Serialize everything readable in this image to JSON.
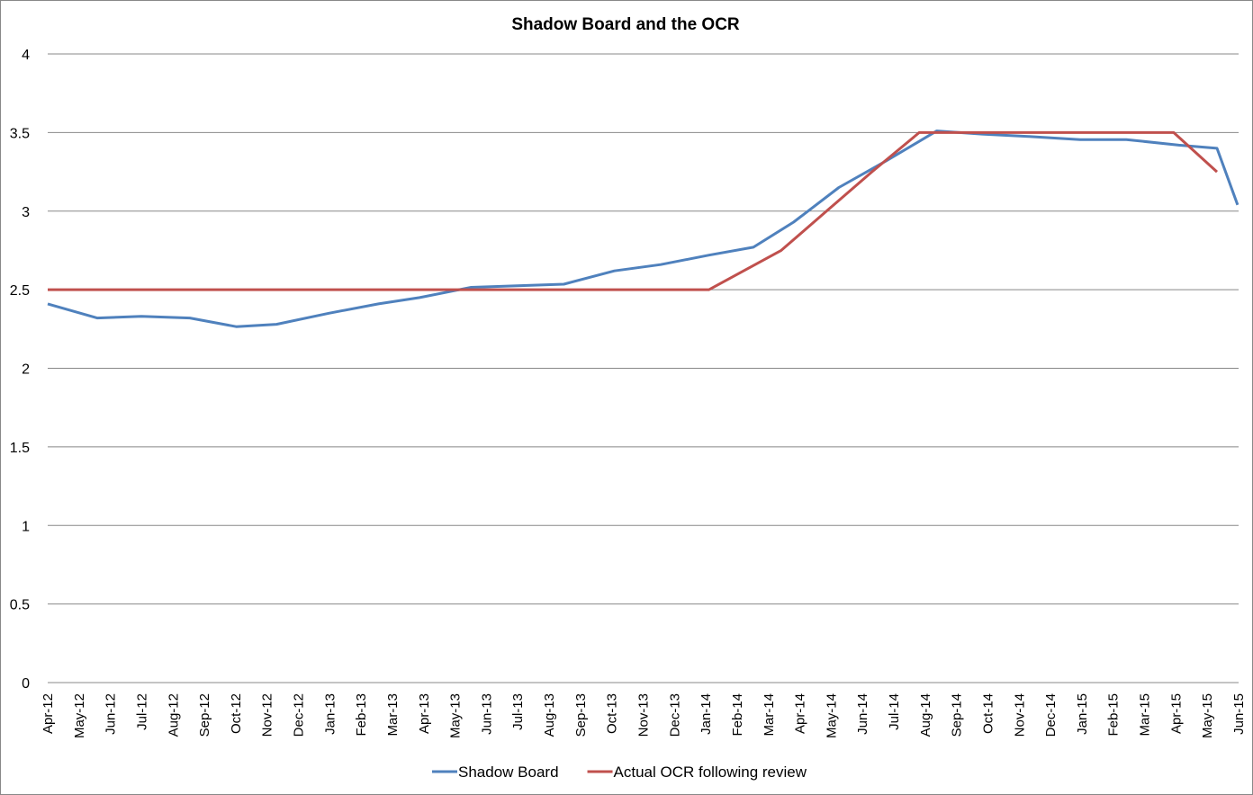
{
  "chart_data": {
    "type": "line",
    "title": "Shadow Board and the OCR",
    "xlabel": "",
    "ylabel": "",
    "ylim": [
      0,
      4
    ],
    "yticks": [
      "0",
      "0.5",
      "1",
      "1.5",
      "2",
      "2.5",
      "3",
      "3.5",
      "4"
    ],
    "xticks": [
      "Apr-12",
      "May-12",
      "Jun-12",
      "Jul-12",
      "Aug-12",
      "Sep-12",
      "Oct-12",
      "Nov-12",
      "Dec-12",
      "Jan-13",
      "Feb-13",
      "Mar-13",
      "Apr-13",
      "May-13",
      "Jun-13",
      "Jul-13",
      "Aug-13",
      "Sep-13",
      "Oct-13",
      "Nov-13",
      "Dec-13",
      "Jan-14",
      "Feb-14",
      "Mar-14",
      "Apr-14",
      "May-14",
      "Jun-14",
      "Jul-14",
      "Aug-14",
      "Sep-14",
      "Oct-14",
      "Nov-14",
      "Dec-14",
      "Jan-15",
      "Feb-15",
      "Mar-15",
      "Apr-15",
      "May-15",
      "Jun-15"
    ],
    "xlim": [
      "2012-04-01",
      "2015-06-01"
    ],
    "grid": true,
    "legend_position": "bottom",
    "series": [
      {
        "name": "Shadow Board",
        "color": "#4F81BD",
        "points": [
          [
            "2012-04-01",
            2.41
          ],
          [
            "2012-05-19",
            2.32
          ],
          [
            "2012-07-01",
            2.33
          ],
          [
            "2012-08-17",
            2.32
          ],
          [
            "2012-10-01",
            2.265
          ],
          [
            "2012-11-09",
            2.28
          ],
          [
            "2012-12-30",
            2.35
          ],
          [
            "2013-02-16",
            2.41
          ],
          [
            "2013-03-28",
            2.45
          ],
          [
            "2013-05-17",
            2.515
          ],
          [
            "2013-07-01",
            2.525
          ],
          [
            "2013-08-15",
            2.535
          ],
          [
            "2013-10-03",
            2.62
          ],
          [
            "2013-11-17",
            2.66
          ],
          [
            "2014-01-03",
            2.72
          ],
          [
            "2014-02-15",
            2.77
          ],
          [
            "2014-03-26",
            2.93
          ],
          [
            "2014-05-09",
            3.15
          ],
          [
            "2014-06-24",
            3.32
          ],
          [
            "2014-08-12",
            3.51
          ],
          [
            "2014-09-25",
            3.49
          ],
          [
            "2014-11-09",
            3.475
          ],
          [
            "2014-12-29",
            3.455
          ],
          [
            "2015-02-12",
            3.455
          ],
          [
            "2015-04-04",
            3.42
          ],
          [
            "2015-05-11",
            3.4
          ],
          [
            "2015-05-31",
            3.04
          ]
        ]
      },
      {
        "name": "Actual OCR following review",
        "color": "#C0504D",
        "points": [
          [
            "2012-04-01",
            2.5
          ],
          [
            "2014-01-03",
            2.5
          ],
          [
            "2014-03-14",
            2.75
          ],
          [
            "2014-04-27",
            3.0
          ],
          [
            "2014-06-10",
            3.25
          ],
          [
            "2014-07-26",
            3.5
          ],
          [
            "2015-03-30",
            3.5
          ],
          [
            "2015-05-11",
            3.25
          ]
        ]
      }
    ]
  }
}
